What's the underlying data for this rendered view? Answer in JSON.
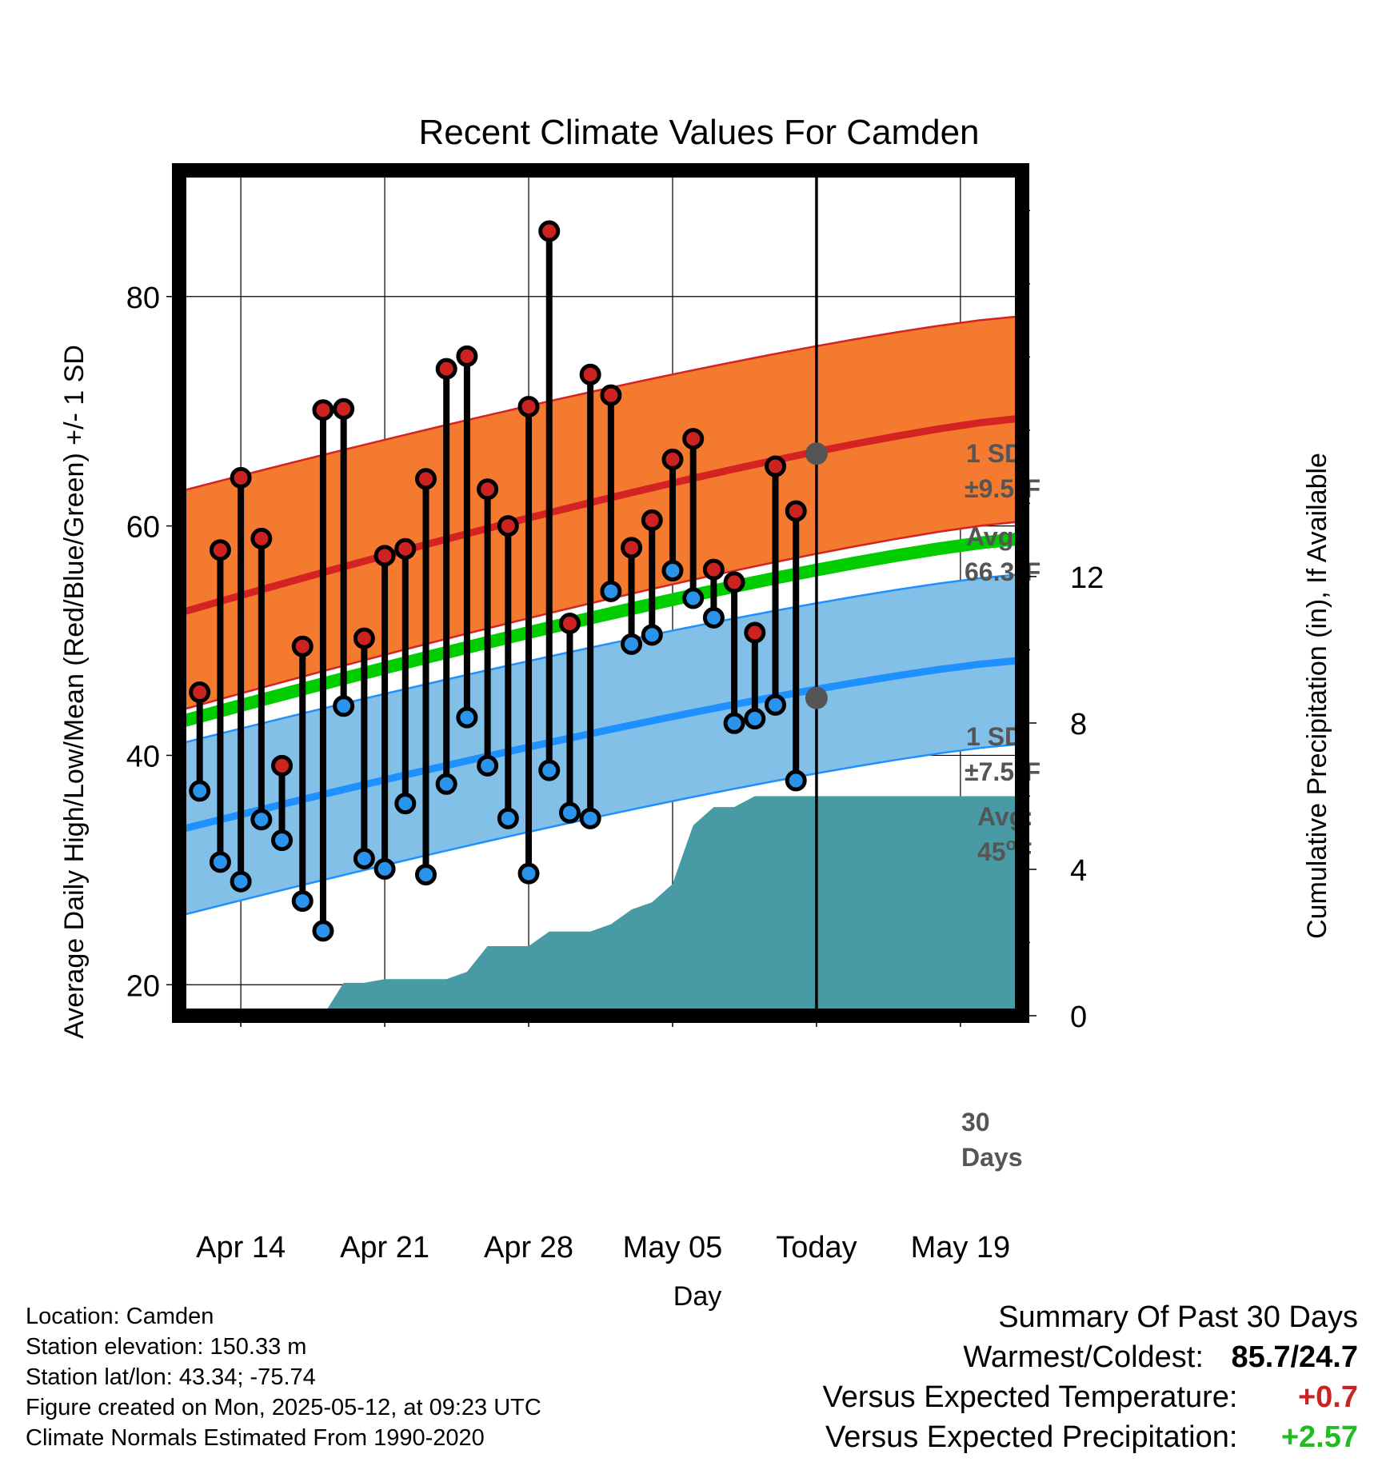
{
  "chart_data": {
    "type": "line",
    "title": "Recent Climate Values For Camden",
    "xlabel": "Day",
    "ylabel_left": "Average Daily High/Low/Mean (Red/Blue/Green) +/- 1 SD",
    "ylabel_right": "Cumulative Precipitation (in), If Available",
    "x_tick_labels": [
      "Apr 14",
      "Apr 21",
      "Apr 28",
      "May 05",
      "Today",
      "May 19"
    ],
    "x_range": [
      "2025-04-11",
      "2025-05-22"
    ],
    "y_left_range": [
      17.3,
      91
    ],
    "y_left_ticks": [
      20,
      40,
      60,
      80
    ],
    "y_right_range": [
      0,
      23.1
    ],
    "y_right_ticks": [
      0,
      4,
      8,
      12
    ],
    "today": "2025-05-12",
    "normals": {
      "high_mean": [
        52.4,
        69.4
      ],
      "high_upper": [
        63.0,
        78.3
      ],
      "high_lower": [
        43.9,
        60.4
      ],
      "low_mean": [
        33.5,
        48.3
      ],
      "low_upper": [
        41.0,
        55.8
      ],
      "low_lower": [
        26.0,
        41.0
      ],
      "mean_mean": [
        42.9,
        58.9
      ]
    },
    "daily_temps": [
      {
        "date": "2025-04-12",
        "high": 45.5,
        "low": 36.9
      },
      {
        "date": "2025-04-13",
        "high": 57.9,
        "low": 30.7
      },
      {
        "date": "2025-04-14",
        "high": 64.2,
        "low": 29.0
      },
      {
        "date": "2025-04-15",
        "high": 58.9,
        "low": 34.4
      },
      {
        "date": "2025-04-16",
        "high": 39.1,
        "low": 32.6
      },
      {
        "date": "2025-04-17",
        "high": 49.5,
        "low": 27.3
      },
      {
        "date": "2025-04-18",
        "high": 70.1,
        "low": 24.7
      },
      {
        "date": "2025-04-19",
        "high": 70.2,
        "low": 44.3
      },
      {
        "date": "2025-04-20",
        "high": 50.2,
        "low": 31.0
      },
      {
        "date": "2025-04-21",
        "high": 57.4,
        "low": 30.1
      },
      {
        "date": "2025-04-22",
        "high": 58.0,
        "low": 35.8
      },
      {
        "date": "2025-04-23",
        "high": 64.1,
        "low": 29.6
      },
      {
        "date": "2025-04-24",
        "high": 73.7,
        "low": 37.5
      },
      {
        "date": "2025-04-25",
        "high": 74.8,
        "low": 43.3
      },
      {
        "date": "2025-04-26",
        "high": 63.2,
        "low": 39.1
      },
      {
        "date": "2025-04-27",
        "high": 60.0,
        "low": 34.5
      },
      {
        "date": "2025-04-28",
        "high": 70.4,
        "low": 29.7
      },
      {
        "date": "2025-04-29",
        "high": 85.7,
        "low": 38.7
      },
      {
        "date": "2025-04-30",
        "high": 51.5,
        "low": 35.0
      },
      {
        "date": "2025-05-01",
        "high": 73.2,
        "low": 34.5
      },
      {
        "date": "2025-05-02",
        "high": 71.4,
        "low": 54.3
      },
      {
        "date": "2025-05-03",
        "high": 58.1,
        "low": 49.7
      },
      {
        "date": "2025-05-04",
        "high": 60.5,
        "low": 50.5
      },
      {
        "date": "2025-05-05",
        "high": 65.8,
        "low": 56.1
      },
      {
        "date": "2025-05-06",
        "high": 67.6,
        "low": 53.7
      },
      {
        "date": "2025-05-07",
        "high": 56.2,
        "low": 52.0
      },
      {
        "date": "2025-05-08",
        "high": 55.1,
        "low": 42.8
      },
      {
        "date": "2025-05-09",
        "high": 50.7,
        "low": 43.2
      },
      {
        "date": "2025-05-10",
        "high": 65.2,
        "low": 44.4
      },
      {
        "date": "2025-05-11",
        "high": 61.3,
        "low": 37.8
      }
    ],
    "cumulative_precip": [
      {
        "date": "2025-04-18",
        "value": 0.0
      },
      {
        "date": "2025-04-19",
        "value": 0.9
      },
      {
        "date": "2025-04-20",
        "value": 0.9
      },
      {
        "date": "2025-04-21",
        "value": 1.0
      },
      {
        "date": "2025-04-23",
        "value": 1.0
      },
      {
        "date": "2025-04-24",
        "value": 1.0
      },
      {
        "date": "2025-04-25",
        "value": 1.2
      },
      {
        "date": "2025-04-26",
        "value": 1.9
      },
      {
        "date": "2025-04-28",
        "value": 1.9
      },
      {
        "date": "2025-04-29",
        "value": 2.3
      },
      {
        "date": "2025-05-01",
        "value": 2.3
      },
      {
        "date": "2025-05-02",
        "value": 2.5
      },
      {
        "date": "2025-05-03",
        "value": 2.9
      },
      {
        "date": "2025-05-04",
        "value": 3.1
      },
      {
        "date": "2025-05-05",
        "value": 3.6
      },
      {
        "date": "2025-05-06",
        "value": 5.2
      },
      {
        "date": "2025-05-07",
        "value": 5.7
      },
      {
        "date": "2025-05-08",
        "value": 5.7
      },
      {
        "date": "2025-05-09",
        "value": 6.0
      },
      {
        "date": "2025-05-22",
        "value": 6.0
      }
    ],
    "annotations": {
      "high_sd_label": "1 SD:",
      "high_sd_value": "±9.5",
      "high_avg_label": "Avg:",
      "high_avg_value": "66.3",
      "low_sd_label": "1 SD:",
      "low_sd_value": "±7.5",
      "low_avg_label": "Avg:",
      "low_avg_value": "45",
      "degree_unit": "o",
      "degree_letter": "F",
      "today_label_line1": "30",
      "today_label_line2": "Days"
    },
    "colors": {
      "high_band": "#f47a30",
      "high_line": "#d52222",
      "low_band": "#82c0e8",
      "low_line": "#1e90ff",
      "mean_line": "#00cc00",
      "precip_fill": "#489ba5",
      "high_dot": "#cc2222",
      "low_dot": "#2a94ec"
    }
  },
  "footer": {
    "location": "Location: Camden",
    "elevation": "Station elevation: 150.33 m",
    "latlon": "Station lat/lon: 43.34; -75.74",
    "created": "Figure created on Mon, 2025-05-12, at 09:23 UTC",
    "normals": "Climate Normals Estimated From 1990-2020"
  },
  "summary": {
    "title": "Summary Of Past 30 Days",
    "warm_cold_label": "Warmest/Coldest:",
    "warm_value": "85.7",
    "warm_cold_sep": "/",
    "cold_value": "24.7",
    "temp_label": "Versus Expected Temperature:",
    "temp_value": "+0.7",
    "temp_color": "#cc2222",
    "precip_label": "Versus Expected Precipitation:",
    "precip_value": "+2.57",
    "precip_color": "#22bb22"
  }
}
